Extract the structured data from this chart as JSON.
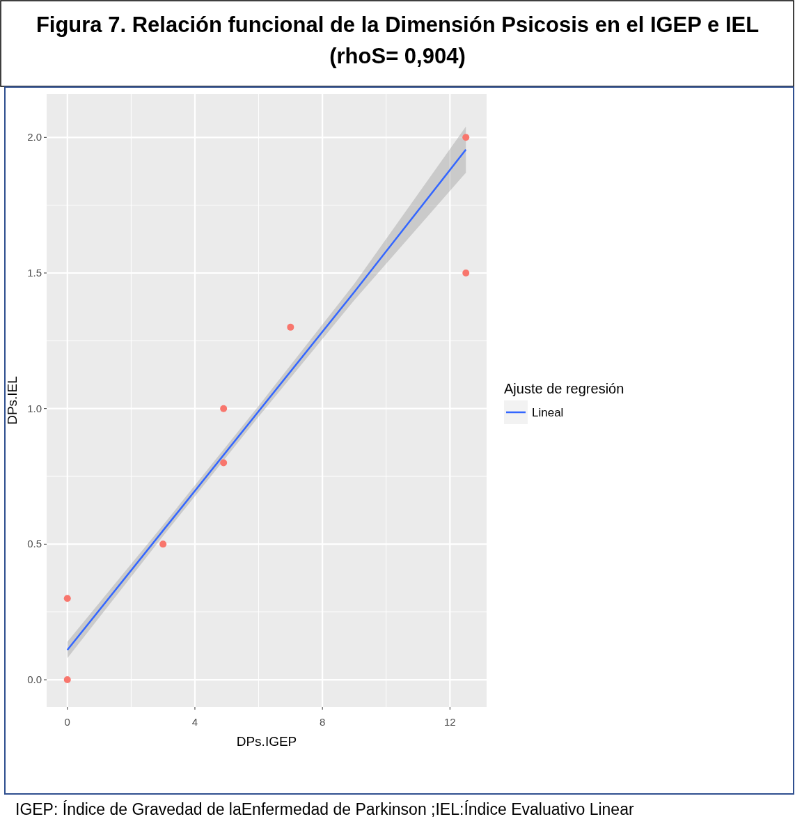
{
  "chart_data": {
    "type": "scatter",
    "title": "Figura 7. Relación funcional de la Dimensión Psicosis en el IGEP e IEL",
    "subtitle": "(rhoS= 0,904)",
    "xlabel": "DPs.IGEP",
    "ylabel": "DPs.IEL",
    "legend_title": "Ajuste de regresión",
    "annotations": [
      "IGEP: Índice de Gravedad de laEnfermedad de Parkinson ;IEL:Índice Evaluativo Linear"
    ],
    "xlim": [
      -0.65,
      13.15
    ],
    "ylim": [
      -0.1,
      2.16
    ],
    "xticks": [
      0,
      4,
      8,
      12
    ],
    "yticks": [
      {
        "value": 0,
        "label": "0.0"
      },
      {
        "value": 0.5,
        "label": "0.5"
      },
      {
        "value": 1,
        "label": "1.0"
      },
      {
        "value": 1.5,
        "label": "1.5"
      },
      {
        "value": 2,
        "label": "2.0"
      }
    ],
    "grid": true,
    "legend": "right",
    "marker": "circle",
    "series": [
      {
        "type": "line",
        "marker": "none",
        "name": "Lineal",
        "color": "#3366ff",
        "x": [
          0,
          3,
          6,
          9,
          12.5
        ],
        "values": [
          0.11,
          0.55,
          0.99,
          1.43,
          1.955
        ],
        "lower": [
          0.08,
          0.53,
          0.97,
          1.4,
          1.87
        ],
        "upper": [
          0.14,
          0.57,
          1.01,
          1.46,
          2.04
        ]
      },
      {
        "color": "#f8766d",
        "x": [
          0,
          0,
          3,
          4.9,
          4.9,
          7,
          12.5,
          12.5
        ],
        "values": [
          0,
          0.3,
          0.5,
          1.0,
          0.8,
          1.3,
          2.0,
          1.5
        ]
      }
    ]
  }
}
